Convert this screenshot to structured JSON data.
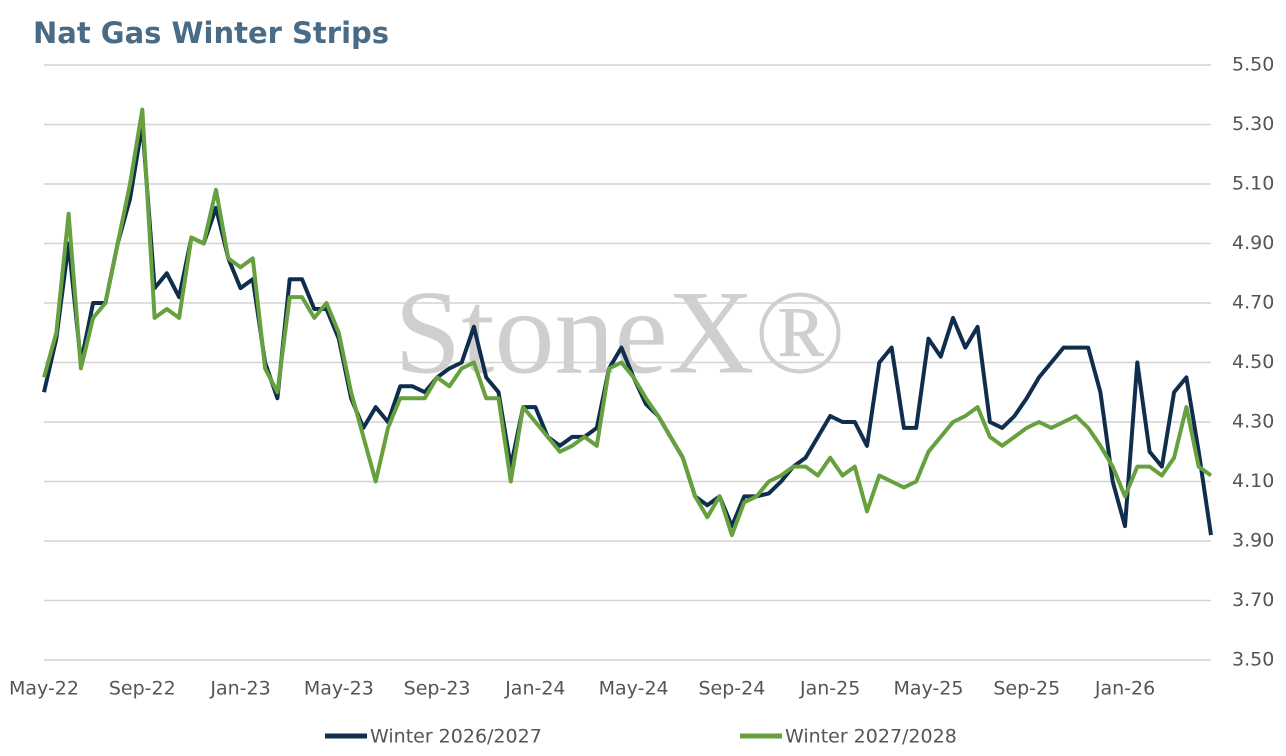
{
  "chart_data": {
    "type": "line",
    "title": "Nat Gas Winter Strips",
    "watermark": "StoneX®",
    "categories": [
      "May-22",
      null,
      null,
      null,
      null,
      null,
      null,
      null,
      "Sep-22",
      null,
      null,
      null,
      null,
      null,
      null,
      null,
      "Jan-23",
      null,
      null,
      null,
      null,
      null,
      null,
      null,
      "May-23",
      null,
      null,
      null,
      null,
      null,
      null,
      null,
      "Sep-23",
      null,
      null,
      null,
      null,
      null,
      null,
      null,
      "Jan-24",
      null,
      null,
      null,
      null,
      null,
      null,
      null,
      "May-24",
      null,
      null,
      null,
      null,
      null,
      null,
      null,
      "Sep-24",
      null,
      null,
      null,
      null,
      null,
      null,
      null,
      "Jan-25",
      null,
      null,
      null,
      null,
      null,
      null,
      null,
      "May-25",
      null,
      null,
      null,
      null,
      null,
      null,
      null,
      "Sep-25",
      null,
      null,
      null,
      null,
      null,
      null,
      null,
      "Jan-26",
      null,
      null,
      null,
      null,
      null,
      null,
      null
    ],
    "series": [
      {
        "name": "Winter 2026/2027",
        "color": "#0f2d4c",
        "values": [
          4.4,
          4.58,
          4.9,
          4.5,
          4.7,
          4.7,
          4.9,
          5.05,
          5.3,
          4.75,
          4.8,
          4.72,
          4.92,
          4.9,
          5.02,
          4.85,
          4.75,
          4.78,
          4.5,
          4.38,
          4.78,
          4.78,
          4.68,
          4.68,
          4.58,
          4.38,
          4.28,
          4.35,
          4.3,
          4.42,
          4.42,
          4.4,
          4.45,
          4.48,
          4.5,
          4.62,
          4.45,
          4.4,
          4.15,
          4.35,
          4.35,
          4.25,
          4.22,
          4.25,
          4.25,
          4.28,
          4.48,
          4.55,
          4.45,
          4.36,
          4.32,
          4.25,
          4.18,
          4.05,
          4.02,
          4.05,
          3.95,
          4.05,
          4.05,
          4.06,
          4.1,
          4.15,
          4.18,
          4.25,
          4.32,
          4.3,
          4.3,
          4.22,
          4.5,
          4.55,
          4.28,
          4.28,
          4.58,
          4.52,
          4.65,
          4.55,
          4.62,
          4.3,
          4.28,
          4.32,
          4.38,
          4.45,
          4.5,
          4.55,
          4.55,
          4.55,
          4.4,
          4.1,
          3.95,
          4.5,
          4.2,
          4.15,
          4.4,
          4.45,
          4.2,
          3.92
        ]
      },
      {
        "name": "Winter 2027/2028",
        "color": "#67a03e",
        "values": [
          4.45,
          4.6,
          5.0,
          4.48,
          4.65,
          4.7,
          4.9,
          5.1,
          5.35,
          4.65,
          4.68,
          4.65,
          4.92,
          4.9,
          5.08,
          4.85,
          4.82,
          4.85,
          4.48,
          4.4,
          4.72,
          4.72,
          4.65,
          4.7,
          4.6,
          4.4,
          4.25,
          4.1,
          4.28,
          4.38,
          4.38,
          4.38,
          4.45,
          4.42,
          4.48,
          4.5,
          4.38,
          4.38,
          4.1,
          4.35,
          4.3,
          4.25,
          4.2,
          4.22,
          4.25,
          4.22,
          4.48,
          4.5,
          4.45,
          4.38,
          4.32,
          4.25,
          4.18,
          4.05,
          3.98,
          4.05,
          3.92,
          4.03,
          4.05,
          4.1,
          4.12,
          4.15,
          4.15,
          4.12,
          4.18,
          4.12,
          4.15,
          4.0,
          4.12,
          4.1,
          4.08,
          4.1,
          4.2,
          4.25,
          4.3,
          4.32,
          4.35,
          4.25,
          4.22,
          4.25,
          4.28,
          4.3,
          4.28,
          4.3,
          4.32,
          4.28,
          4.22,
          4.15,
          4.05,
          4.15,
          4.15,
          4.12,
          4.18,
          4.35,
          4.15,
          4.12
        ]
      }
    ],
    "ylim": [
      3.5,
      5.5
    ],
    "yticks": [
      {
        "value": 3.5,
        "label": "3.50"
      },
      {
        "value": 3.7,
        "label": "3.70"
      },
      {
        "value": 3.9,
        "label": "3.90"
      },
      {
        "value": 4.1,
        "label": "4.10"
      },
      {
        "value": 4.3,
        "label": "4.30"
      },
      {
        "value": 4.5,
        "label": "4.50"
      },
      {
        "value": 4.7,
        "label": "4.70"
      },
      {
        "value": 4.9,
        "label": "4.90"
      },
      {
        "value": 5.1,
        "label": "5.10"
      },
      {
        "value": 5.3,
        "label": "5.30"
      },
      {
        "value": 5.5,
        "label": "5.50"
      }
    ],
    "grid": true,
    "legend": "bottom"
  }
}
